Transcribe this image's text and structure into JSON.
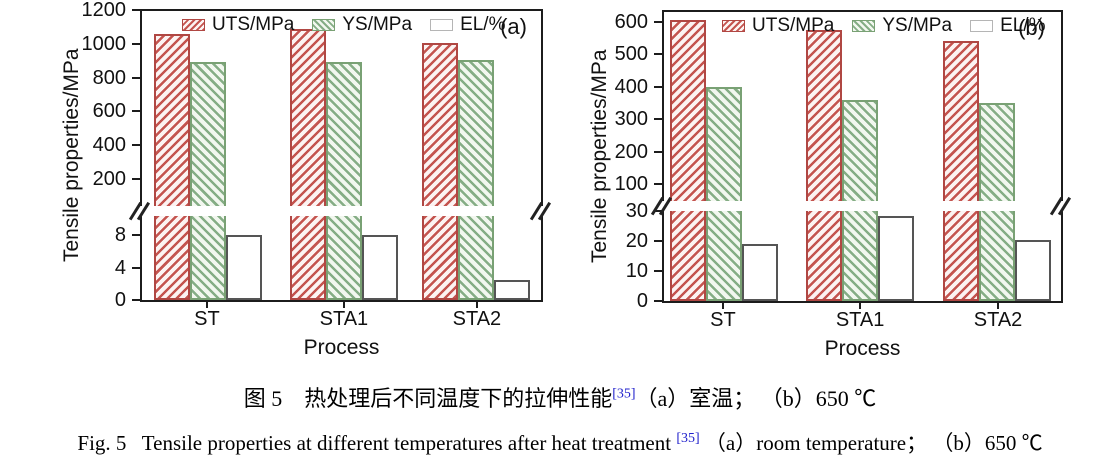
{
  "figure": {
    "captions": {
      "zh": {
        "prefix": "图 5　热处理后不同温度下的拉伸性能",
        "ref": "[35]",
        "suffix": "（a）室温； （b）650 ℃"
      },
      "en": {
        "prefix": "Fig. 5   Tensile properties at different temperatures after heat treatment ",
        "ref": "[35]",
        "suffix": " （a）room temperature； （b）650 ℃"
      }
    },
    "colors": {
      "uts_hatch": "#c4544f",
      "uts_border": "#b04743",
      "ys_hatch": "#85ad85",
      "ys_border": "#79a174",
      "el_bar_border": "#555555",
      "axis": "#1c1c1c",
      "reference_link_blue": "#2121cc"
    }
  },
  "chart_data": [
    {
      "type": "bar",
      "panel_label": "(a)",
      "ylabel": "Tensile properties/MPa",
      "xlabel": "Process",
      "categories": [
        "ST",
        "STA1",
        "STA2"
      ],
      "series": [
        {
          "name": "UTS/MPa",
          "axis": "upper",
          "style": "red-hatch",
          "values": [
            1060,
            1085,
            1005
          ]
        },
        {
          "name": "YS/MPa",
          "axis": "upper",
          "style": "green-hatch",
          "values": [
            895,
            895,
            905
          ]
        },
        {
          "name": "EL/%",
          "axis": "lower",
          "style": "white",
          "values": [
            8,
            8,
            2.5
          ]
        }
      ],
      "axis_break": true,
      "upper_axis": {
        "ticks": [
          200,
          400,
          600,
          800,
          1000,
          1200
        ],
        "range": [
          200,
          1200
        ],
        "unit": "MPa"
      },
      "lower_axis": {
        "ticks": [
          0,
          4,
          8
        ],
        "range": [
          0,
          8
        ],
        "unit": "%"
      },
      "legend_position": "top-inside",
      "grid": false
    },
    {
      "type": "bar",
      "panel_label": "(b)",
      "ylabel": "Tensile properties/MPa",
      "xlabel": "Process",
      "categories": [
        "ST",
        "STA1",
        "STA2"
      ],
      "series": [
        {
          "name": "UTS/MPa",
          "axis": "upper",
          "style": "red-hatch",
          "values": [
            605,
            575,
            540
          ]
        },
        {
          "name": "YS/MPa",
          "axis": "upper",
          "style": "green-hatch",
          "values": [
            400,
            360,
            350
          ]
        },
        {
          "name": "EL/%",
          "axis": "lower",
          "style": "white",
          "values": [
            19,
            28.5,
            20.5
          ]
        }
      ],
      "axis_break": true,
      "upper_axis": {
        "ticks": [
          100,
          200,
          300,
          400,
          500,
          600
        ],
        "range": [
          100,
          600
        ],
        "unit": "MPa"
      },
      "lower_axis": {
        "ticks": [
          0,
          10,
          20,
          30
        ],
        "range": [
          0,
          30
        ],
        "unit": "%"
      },
      "legend_position": "top-inside",
      "grid": false
    }
  ]
}
